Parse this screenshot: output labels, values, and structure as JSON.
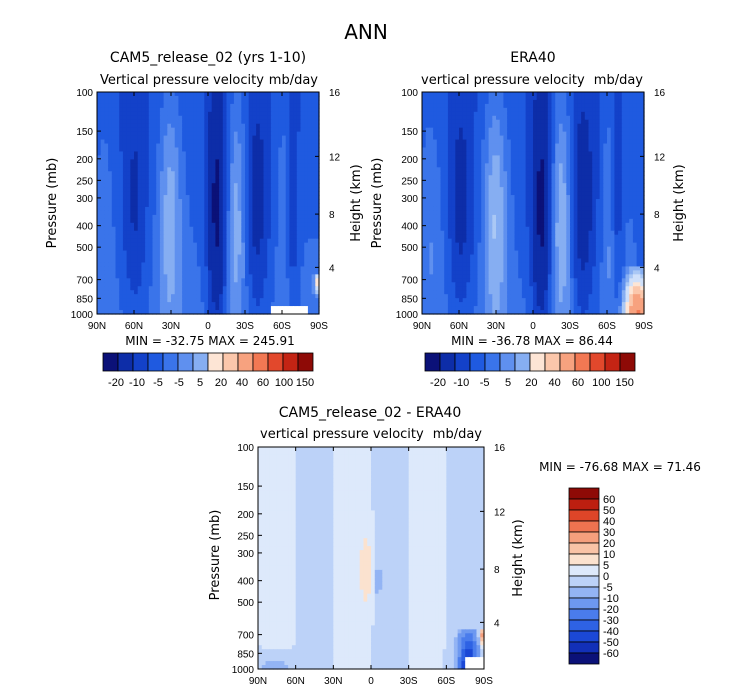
{
  "figure": {
    "title": "ANN"
  },
  "colors": {
    "palette": [
      "#0b1178",
      "#0d2da8",
      "#1341c9",
      "#1f5ae0",
      "#3a74ea",
      "#5f90ef",
      "#86aef2",
      "#aac8f5",
      "#cfe0fa",
      "#fde5d5",
      "#fbc7ab",
      "#f7a27f",
      "#f27853",
      "#e2482c",
      "#c42414",
      "#8e0a06"
    ],
    "diff_palette": [
      "#0b1178",
      "#1230b8",
      "#1b48d6",
      "#2e62e4",
      "#4a7cec",
      "#6d98f0",
      "#93b4f4",
      "#bcd2f8",
      "#dde9fb",
      "#fbe2cf",
      "#f9c3a6",
      "#f59f7d",
      "#ee7350",
      "#de4528",
      "#bd1f10",
      "#8e0a06"
    ]
  },
  "chart_data": [
    {
      "type": "heatmap",
      "title": "CAM5_release_02 (yrs 1-10)",
      "subtitle_left": "Vertical pressure velocity",
      "subtitle_right": "mb/day",
      "ylabel": "Pressure (mb)",
      "ylabel_right": "Height (km)",
      "x_ticks": [
        "90N",
        "60N",
        "30N",
        "0",
        "30S",
        "60S",
        "90S"
      ],
      "y_ticks": [
        "100",
        "150",
        "200",
        "250",
        "300",
        "400",
        "500",
        "700",
        "850",
        "1000"
      ],
      "y_right_ticks": [
        "16",
        "12",
        "8",
        "4"
      ],
      "xlim": [
        90,
        -90
      ],
      "ylim": [
        1000,
        100
      ],
      "stats": "MIN = -32.75   MAX = 245.91",
      "legend": {
        "labels": [
          "-20",
          "-10",
          "-5",
          "-5",
          "5",
          "20",
          "40",
          "60",
          "100",
          "150"
        ]
      }
    },
    {
      "type": "heatmap",
      "title": "ERA40",
      "subtitle_left": "vertical pressure velocity",
      "subtitle_right": "mb/day",
      "ylabel": "Pressure (mb)",
      "ylabel_right": "Height (km)",
      "x_ticks": [
        "90N",
        "60N",
        "30N",
        "0",
        "30S",
        "60S",
        "90S"
      ],
      "y_ticks": [
        "100",
        "150",
        "200",
        "250",
        "300",
        "400",
        "500",
        "700",
        "850",
        "1000"
      ],
      "y_right_ticks": [
        "16",
        "12",
        "8",
        "4"
      ],
      "xlim": [
        90,
        -90
      ],
      "ylim": [
        1000,
        100
      ],
      "stats": "MIN = -36.78   MAX =  86.44",
      "legend": {
        "labels": [
          "-20",
          "-10",
          "-5",
          "5",
          "20",
          "40",
          "60",
          "100",
          "150"
        ]
      }
    },
    {
      "type": "heatmap",
      "title": "CAM5_release_02 - ERA40",
      "subtitle_left": "vertical pressure velocity",
      "subtitle_right": "mb/day",
      "ylabel": "Pressure (mb)",
      "ylabel_right": "Height (km)",
      "x_ticks": [
        "90N",
        "60N",
        "30N",
        "0",
        "30S",
        "60S",
        "90S"
      ],
      "y_ticks": [
        "100",
        "150",
        "200",
        "250",
        "300",
        "400",
        "500",
        "700",
        "850",
        "1000"
      ],
      "y_right_ticks": [
        "16",
        "12",
        "8",
        "4"
      ],
      "xlim": [
        90,
        -90
      ],
      "ylim": [
        1000,
        100
      ],
      "stats": "MIN = -76.68   MAX =  71.46",
      "legend": {
        "labels": [
          "60",
          "50",
          "40",
          "30",
          "20",
          "10",
          "5",
          "0",
          "-5",
          "-10",
          "-20",
          "-30",
          "-40",
          "-50",
          "-60"
        ]
      }
    }
  ]
}
